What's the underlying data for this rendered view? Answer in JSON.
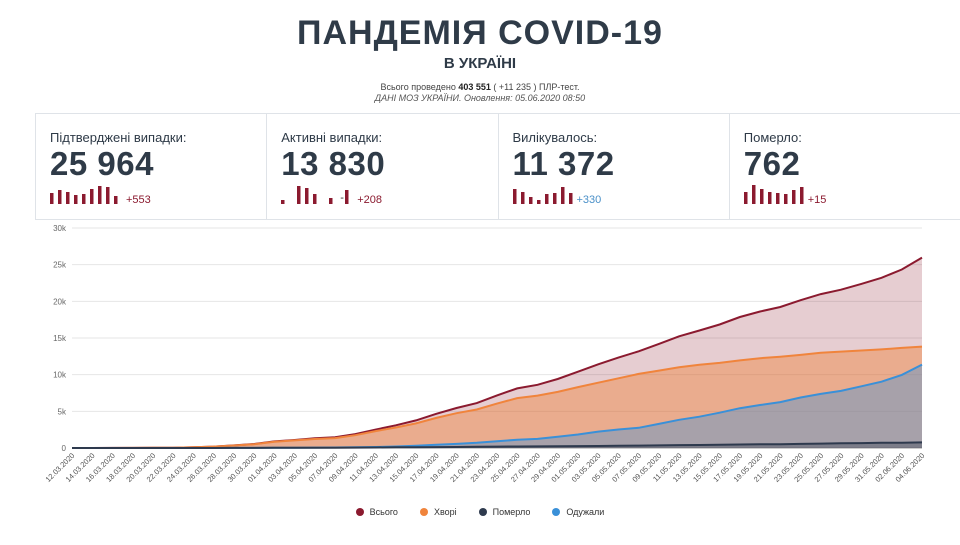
{
  "header": {
    "title": "ПАНДЕМІЯ COVID-19",
    "subtitle": "В УКРАЇНІ",
    "tests_prefix": "Всього проведено",
    "tests_total": "403 551",
    "tests_suffix": "( +11 235 ) ПЛР-тест.",
    "source": "ДАНІ МОЗ УКРАЇНИ. Оновлення: 05.06.2020 08:50"
  },
  "cards": [
    {
      "label": "Підтверджені випадки:",
      "value": "25 964",
      "delta": "+553",
      "color": "#8b1a2f",
      "bars": [
        0.55,
        0.7,
        0.6,
        0.45,
        0.5,
        0.75,
        0.9,
        0.85,
        0.4,
        0.0
      ]
    },
    {
      "label": "Активні випадки:",
      "value": "13 830",
      "delta": "+208",
      "color": "#8b1a2f",
      "bars": [
        0.2,
        0.0,
        0.9,
        0.8,
        0.5,
        0.0,
        0.3,
        -0.1,
        0.7,
        0.0
      ],
      "minus": "-"
    },
    {
      "label": "Вилікувалось:",
      "value": "11 372",
      "delta": "+330",
      "color": "#4a90c8",
      "barColor": "#8b1a2f",
      "bars": [
        0.75,
        0.6,
        0.35,
        0.2,
        0.5,
        0.55,
        0.85,
        0.55,
        0.0,
        0.0
      ]
    },
    {
      "label": "Померло:",
      "value": "762",
      "delta": "+15",
      "color": "#8b1a2f",
      "bars": [
        0.6,
        0.95,
        0.75,
        0.6,
        0.55,
        0.5,
        0.7,
        0.85,
        0.0,
        0.0
      ]
    }
  ],
  "legend": [
    {
      "label": "Всього",
      "color": "#8b1a2f"
    },
    {
      "label": "Хворі",
      "color": "#f0843c"
    },
    {
      "label": "Померло",
      "color": "#2e3a4e"
    },
    {
      "label": "Одужали",
      "color": "#3a90d8"
    }
  ],
  "chart_data": {
    "type": "area",
    "ylim": [
      0,
      30000
    ],
    "yticks": [
      0,
      5000,
      10000,
      15000,
      20000,
      25000,
      30000
    ],
    "ytick_labels": [
      "0",
      "5k",
      "10k",
      "15k",
      "20k",
      "25k",
      "30k"
    ],
    "x": [
      "12.03.2020",
      "14.03.2020",
      "16.03.2020",
      "18.03.2020",
      "20.03.2020",
      "22.03.2020",
      "24.03.2020",
      "26.03.2020",
      "28.03.2020",
      "30.03.2020",
      "01.04.2020",
      "03.04.2020",
      "05.04.2020",
      "07.04.2020",
      "09.04.2020",
      "11.04.2020",
      "13.04.2020",
      "15.04.2020",
      "17.04.2020",
      "19.04.2020",
      "21.04.2020",
      "23.04.2020",
      "25.04.2020",
      "27.04.2020",
      "29.04.2020",
      "01.05.2020",
      "03.05.2020",
      "05.05.2020",
      "07.05.2020",
      "09.05.2020",
      "11.05.2020",
      "13.05.2020",
      "15.05.2020",
      "17.05.2020",
      "19.05.2020",
      "21.05.2020",
      "23.05.2020",
      "25.05.2020",
      "27.05.2020",
      "29.05.2020",
      "31.05.2020",
      "02.06.2020",
      "04.06.2020"
    ],
    "series": [
      {
        "name": "Всього",
        "color": "#8b1a2f",
        "values": [
          1,
          3,
          7,
          16,
          29,
          47,
          97,
          196,
          356,
          548,
          897,
          1096,
          1319,
          1462,
          1892,
          2511,
          3102,
          3764,
          4662,
          5449,
          6125,
          7170,
          8125,
          8617,
          9410,
          10406,
          11411,
          12331,
          13184,
          14195,
          15232,
          16023,
          16847,
          17858,
          18616,
          19230,
          20148,
          20986,
          21584,
          22382,
          23204,
          24340,
          25964
        ]
      },
      {
        "name": "Хворі",
        "color": "#f0843c",
        "values": [
          1,
          3,
          6,
          15,
          27,
          44,
          92,
          186,
          338,
          520,
          852,
          1030,
          1230,
          1350,
          1740,
          2300,
          2800,
          3350,
          4100,
          4750,
          5250,
          6050,
          6800,
          7150,
          7650,
          8300,
          8900,
          9500,
          10100,
          10550,
          11000,
          11350,
          11600,
          11950,
          12250,
          12450,
          12700,
          13000,
          13150,
          13300,
          13450,
          13650,
          13830
        ]
      },
      {
        "name": "Померло",
        "color": "#2e3a4e",
        "values": [
          0,
          0,
          0,
          0,
          1,
          1,
          3,
          5,
          9,
          13,
          22,
          27,
          35,
          41,
          52,
          73,
          93,
          108,
          125,
          141,
          161,
          187,
          209,
          220,
          239,
          261,
          279,
          308,
          327,
          361,
          391,
          410,
          439,
          480,
          506,
          525,
          558,
          605,
          644,
          669,
          708,
          727,
          762
        ]
      },
      {
        "name": "Одужали",
        "color": "#3a90d8",
        "values": [
          0,
          0,
          1,
          1,
          1,
          2,
          2,
          5,
          9,
          15,
          23,
          39,
          54,
          71,
          100,
          138,
          209,
          306,
          437,
          558,
          714,
          933,
          1116,
          1247,
          1521,
          1845,
          2232,
          2523,
          2757,
          3284,
          3841,
          4263,
          4808,
          5428,
          5860,
          6255,
          6890,
          7381,
          7790,
          8413,
          9046,
          9963,
          11372
        ]
      }
    ]
  }
}
